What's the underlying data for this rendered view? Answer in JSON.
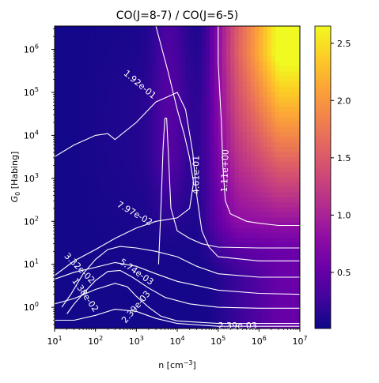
{
  "chart_data": {
    "type": "heatmap",
    "title": "CO(J=8-7) / CO(J=6-5)",
    "xlabel": "n [cm",
    "xlabel_exp": "−3",
    "xlabel_close": "]",
    "ylabel_main": "G",
    "ylabel_sub": "0",
    "ylabel_rest": " [Habing]",
    "x_scale": "log",
    "y_scale": "log",
    "xlim": [
      10,
      10000000
    ],
    "ylim": [
      0.32,
      3500000
    ],
    "x_ticks": [
      {
        "value": 10,
        "base": "10",
        "exp": "1"
      },
      {
        "value": 100,
        "base": "10",
        "exp": "2"
      },
      {
        "value": 1000,
        "base": "10",
        "exp": "3"
      },
      {
        "value": 10000,
        "base": "10",
        "exp": "4"
      },
      {
        "value": 100000,
        "base": "10",
        "exp": "5"
      },
      {
        "value": 1000000,
        "base": "10",
        "exp": "6"
      },
      {
        "value": 10000000,
        "base": "10",
        "exp": "7"
      }
    ],
    "y_ticks": [
      {
        "value": 1,
        "base": "10",
        "exp": "0"
      },
      {
        "value": 10,
        "base": "10",
        "exp": "1"
      },
      {
        "value": 100,
        "base": "10",
        "exp": "2"
      },
      {
        "value": 1000,
        "base": "10",
        "exp": "3"
      },
      {
        "value": 10000,
        "base": "10",
        "exp": "4"
      },
      {
        "value": 100000,
        "base": "10",
        "exp": "5"
      },
      {
        "value": 1000000,
        "base": "10",
        "exp": "6"
      }
    ],
    "colormap": "plasma",
    "colorbar": {
      "min": 0.01,
      "max": 2.65,
      "ticks": [
        {
          "value": 0.5,
          "label": "0.5"
        },
        {
          "value": 1.0,
          "label": "1.0"
        },
        {
          "value": 1.5,
          "label": "1.5"
        },
        {
          "value": 2.0,
          "label": "2.0"
        },
        {
          "value": 2.5,
          "label": "2.5"
        }
      ]
    },
    "contours": [
      {
        "level": "2.39e-03",
        "points": [
          [
            10,
            0.5
          ],
          [
            30,
            0.5
          ],
          [
            100,
            0.65
          ],
          [
            300,
            0.9
          ],
          [
            1000,
            0.8
          ],
          [
            3000,
            0.55
          ],
          [
            10000,
            0.42
          ],
          [
            100000,
            0.36
          ],
          [
            1000000,
            0.36
          ],
          [
            10000000,
            0.36
          ]
        ],
        "label_at": [
          300000,
          0.36
        ],
        "label_angle": 0
      },
      {
        "level": "2.39e-03",
        "points": [
          [
            10,
            1.2
          ],
          [
            30,
            1.6
          ],
          [
            100,
            2.6
          ],
          [
            300,
            3.6
          ],
          [
            600,
            3.0
          ],
          [
            1000,
            1.8
          ],
          [
            2000,
            1.0
          ],
          [
            4000,
            0.62
          ],
          [
            10000,
            0.48
          ],
          [
            100000,
            0.42
          ],
          [
            1000000,
            0.42
          ],
          [
            10000000,
            0.42
          ]
        ],
        "label_at": [
          1000,
          1.0
        ],
        "label_angle": 50
      },
      {
        "level": "1.38e-02",
        "points": [
          [
            20,
            0.7
          ],
          [
            30,
            1.2
          ],
          [
            60,
            2.5
          ],
          [
            100,
            4.2
          ],
          [
            200,
            6.8
          ],
          [
            400,
            7.2
          ],
          [
            800,
            5.0
          ],
          [
            2000,
            2.8
          ],
          [
            5000,
            1.7
          ],
          [
            20000,
            1.2
          ],
          [
            100000,
            1.0
          ],
          [
            1000000,
            0.95
          ],
          [
            10000000,
            0.95
          ]
        ],
        "label_at": [
          55,
          1.9
        ],
        "label_angle": -55
      },
      {
        "level": "5.74e-03",
        "points": [
          [
            10,
            4.5
          ],
          [
            30,
            6.5
          ],
          [
            100,
            8.5
          ],
          [
            300,
            11
          ],
          [
            1000,
            9
          ],
          [
            3000,
            6
          ],
          [
            10000,
            4
          ],
          [
            100000,
            2.5
          ],
          [
            1000000,
            2.1
          ],
          [
            10000000,
            2.0
          ]
        ],
        "label_at": [
          1000,
          6.5
        ],
        "label_angle": -35
      },
      {
        "level": "3.32e-02",
        "points": [
          [
            15,
            1.0
          ],
          [
            25,
            2.0
          ],
          [
            50,
            6.0
          ],
          [
            100,
            13
          ],
          [
            200,
            22
          ],
          [
            400,
            26
          ],
          [
            1000,
            24
          ],
          [
            3000,
            20
          ],
          [
            10000,
            15
          ],
          [
            30000,
            9
          ],
          [
            100000,
            6
          ],
          [
            1000000,
            5
          ],
          [
            10000000,
            5
          ]
        ],
        "label_at": [
          40,
          8.0
        ],
        "label_angle": -45
      },
      {
        "level": "7.97e-02",
        "points": [
          [
            10,
            5.5
          ],
          [
            30,
            12
          ],
          [
            100,
            22
          ],
          [
            300,
            40
          ],
          [
            1000,
            70
          ],
          [
            3000,
            100
          ],
          [
            10000,
            120
          ],
          [
            20000,
            200
          ],
          [
            25000,
            800
          ],
          [
            20000,
            3000
          ],
          [
            15000,
            10000
          ],
          [
            10000,
            40000
          ],
          [
            6000,
            300000
          ],
          [
            3000,
            3500000
          ]
        ],
        "label_at": [
          900,
          150
        ],
        "label_angle": -30
      },
      {
        "level": "1.92e-01",
        "points": [
          [
            10,
            3200
          ],
          [
            30,
            6000
          ],
          [
            100,
            10000
          ],
          [
            200,
            11000
          ],
          [
            300,
            8000
          ],
          [
            1000,
            20000
          ],
          [
            3000,
            60000
          ],
          [
            6000,
            80000
          ],
          [
            10000,
            100000
          ],
          [
            16000,
            40000
          ],
          [
            24000,
            4000
          ],
          [
            30000,
            400
          ],
          [
            40000,
            60
          ],
          [
            60000,
            25
          ],
          [
            100000,
            15
          ],
          [
            1000000,
            12
          ],
          [
            10000000,
            12
          ]
        ],
        "label_at": [
          1200,
          150000
        ],
        "label_angle": -40
      },
      {
        "level": "4.61e-01",
        "points": [
          [
            3500,
            10
          ],
          [
            4000,
            200
          ],
          [
            4500,
            5000
          ],
          [
            5000,
            25000
          ],
          [
            5500,
            25000
          ],
          [
            6000,
            5000
          ],
          [
            7000,
            200
          ],
          [
            10000,
            60
          ],
          [
            20000,
            40
          ],
          [
            40000,
            30
          ],
          [
            100000,
            25
          ],
          [
            1000000,
            24
          ],
          [
            10000000,
            24
          ]
        ],
        "label_at": [
          30000,
          1200
        ],
        "label_angle": 90
      },
      {
        "level": "1.11e+00",
        "points": [
          [
            100000,
            3500000
          ],
          [
            100000,
            500000
          ],
          [
            110000,
            100000
          ],
          [
            120000,
            20000
          ],
          [
            130000,
            2000
          ],
          [
            150000,
            300
          ],
          [
            200000,
            150
          ],
          [
            500000,
            100
          ],
          [
            1000000,
            90
          ],
          [
            3000000,
            80
          ],
          [
            10000000,
            80
          ]
        ],
        "label_at": [
          150000,
          1500
        ],
        "label_angle": 88
      }
    ]
  }
}
